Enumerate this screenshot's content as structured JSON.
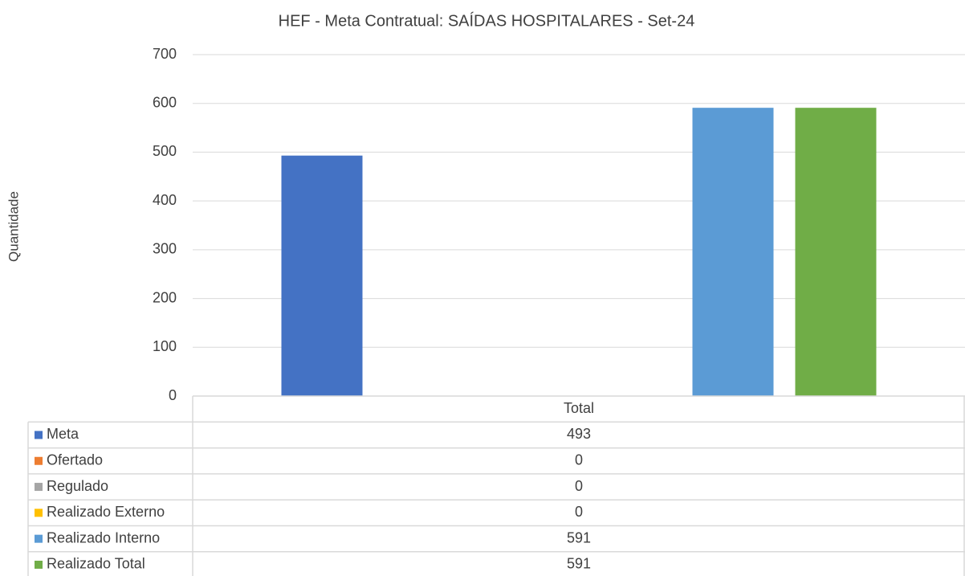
{
  "chart_data": {
    "type": "bar",
    "title": "HEF - Meta Contratual: SAÍDAS HOSPITALARES - Set-24",
    "y_label": "Quantidade",
    "categories": [
      "Total"
    ],
    "series": [
      {
        "name": "Meta",
        "color": "#4472c4",
        "values": [
          493
        ]
      },
      {
        "name": "Ofertado",
        "color": "#ed7d31",
        "values": [
          0
        ]
      },
      {
        "name": "Regulado",
        "color": "#a5a5a5",
        "values": [
          0
        ]
      },
      {
        "name": "Realizado Externo",
        "color": "#ffc000",
        "values": [
          0
        ]
      },
      {
        "name": "Realizado Interno",
        "color": "#5b9bd5",
        "values": [
          591
        ]
      },
      {
        "name": "Realizado Total",
        "color": "#70ad47",
        "values": [
          591
        ]
      }
    ],
    "ylim": [
      0,
      700
    ],
    "yticks": [
      0,
      100,
      200,
      300,
      400,
      500,
      600,
      700
    ],
    "grid": true
  }
}
